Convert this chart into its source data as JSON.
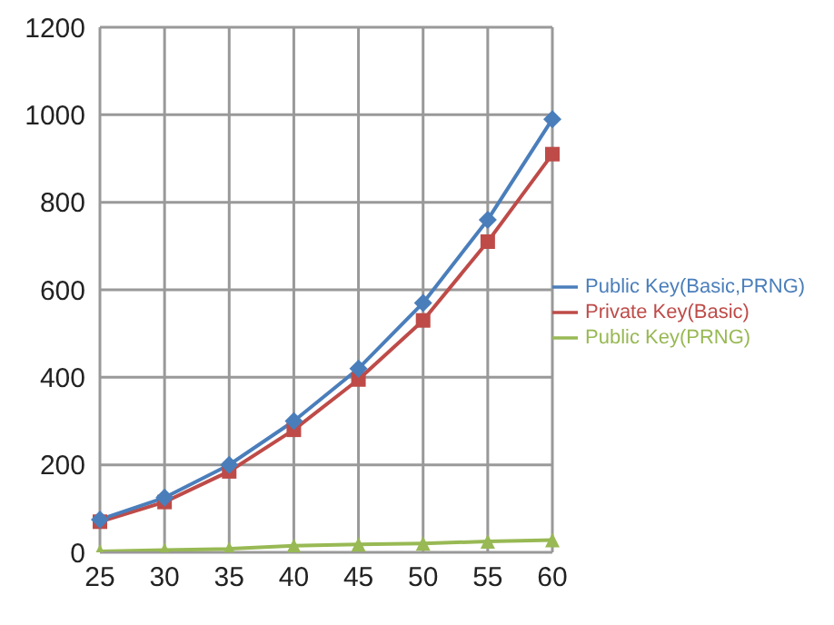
{
  "chart_data": {
    "type": "line",
    "categories": [
      "25",
      "30",
      "35",
      "40",
      "45",
      "50",
      "55",
      "60"
    ],
    "series": [
      {
        "name": "Public Key(Basic,PRNG)",
        "color": "#4a7ebb",
        "marker": "diamond",
        "values": [
          75,
          125,
          200,
          300,
          420,
          570,
          760,
          990
        ]
      },
      {
        "name": "Private Key(Basic)",
        "color": "#be4b48",
        "marker": "square",
        "values": [
          70,
          115,
          185,
          280,
          395,
          530,
          710,
          910
        ]
      },
      {
        "name": "Public Key(PRNG)",
        "color": "#98b954",
        "marker": "triangle",
        "values": [
          2,
          5,
          8,
          15,
          18,
          20,
          25,
          28
        ]
      }
    ],
    "ylim": [
      0,
      1200
    ],
    "yticks": [
      0,
      200,
      400,
      600,
      800,
      1000,
      1200
    ],
    "grid": true,
    "legend": "right"
  }
}
